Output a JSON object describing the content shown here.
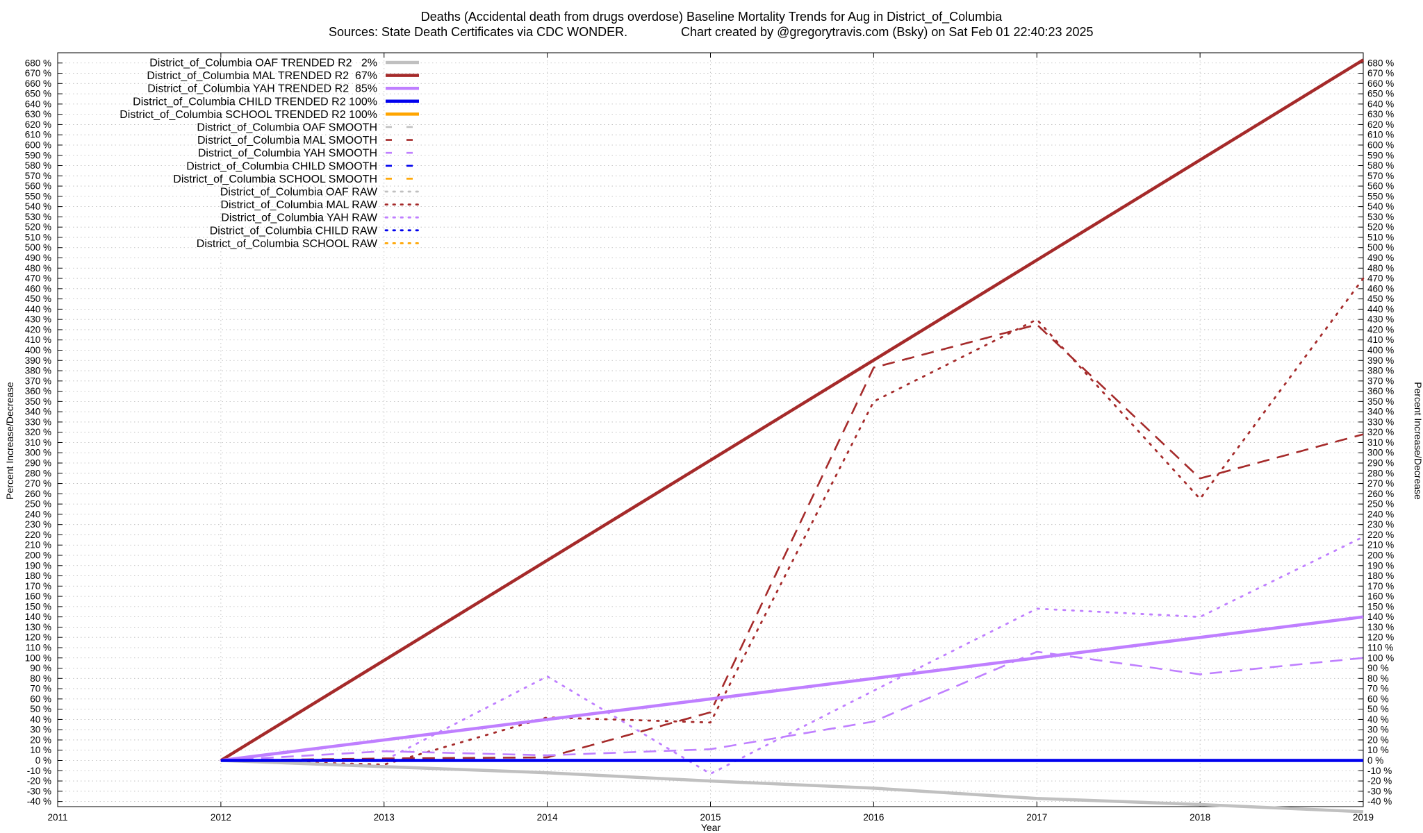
{
  "chart_data": {
    "type": "line",
    "title": "Deaths (Accidental death from drugs overdose)  Baseline Mortality Trends for Aug in District_of_Columbia",
    "subtitle_left": "Sources: State Death Certificates via CDC WONDER.",
    "subtitle_right": "Chart created by @gregorytravis.com (Bsky) on Sat Feb 01 22:40:23 2025",
    "xlabel": "Year",
    "ylabel_left": "Percent Increase/Decrease",
    "ylabel_right": "Percent Increase/Decrease",
    "xlim": [
      2011,
      2019
    ],
    "ylim": [
      -45,
      690
    ],
    "x_ticks": [
      "2011",
      "2012",
      "2013",
      "2014",
      "2015",
      "2016",
      "2017",
      "2018",
      "2019"
    ],
    "y_tick_start": -40,
    "y_tick_end": 680,
    "y_tick_step": 10,
    "y_tick_suffix": " %",
    "grid": true,
    "legend_position": "top-left",
    "colors": {
      "oaf": "#c0c0c0",
      "mal": "#a52a2a",
      "yah": "#bf7fff",
      "child": "#0000ee",
      "school": "#ffa500"
    },
    "series": [
      {
        "name": "District_of_Columbia OAF TRENDED R2   2%",
        "key": "oaf",
        "style": "trended",
        "x": [
          2012,
          2013,
          2014,
          2015,
          2016,
          2017,
          2018,
          2019
        ],
        "values": [
          0,
          -6,
          -12,
          -20,
          -27,
          -37,
          -43,
          -50
        ]
      },
      {
        "name": "District_of_Columbia MAL TRENDED R2  67%",
        "key": "mal",
        "style": "trended",
        "x": [
          2012,
          2019
        ],
        "values": [
          0,
          683
        ]
      },
      {
        "name": "District_of_Columbia YAH TRENDED R2  85%",
        "key": "yah",
        "style": "trended",
        "x": [
          2012,
          2019
        ],
        "values": [
          0,
          140
        ]
      },
      {
        "name": "District_of_Columbia CHILD TRENDED R2 100%",
        "key": "child",
        "style": "trended",
        "x": [
          2012,
          2019
        ],
        "values": [
          0,
          0
        ]
      },
      {
        "name": "District_of_Columbia SCHOOL TRENDED R2 100%",
        "key": "school",
        "style": "trended",
        "x": [],
        "values": []
      },
      {
        "name": "District_of_Columbia OAF SMOOTH",
        "key": "oaf",
        "style": "smooth",
        "x": [],
        "values": []
      },
      {
        "name": "District_of_Columbia MAL SMOOTH",
        "key": "mal",
        "style": "smooth",
        "x": [
          2012,
          2013,
          2014,
          2015,
          2016,
          2017,
          2018,
          2019
        ],
        "values": [
          0,
          2,
          3,
          47,
          383,
          425,
          275,
          318
        ]
      },
      {
        "name": "District_of_Columbia YAH SMOOTH",
        "key": "yah",
        "style": "smooth",
        "x": [
          2012,
          2013,
          2014,
          2015,
          2016,
          2017,
          2018,
          2019
        ],
        "values": [
          0,
          9,
          5,
          11,
          38,
          106,
          84,
          100
        ]
      },
      {
        "name": "District_of_Columbia CHILD SMOOTH",
        "key": "child",
        "style": "smooth",
        "x": [],
        "values": []
      },
      {
        "name": "District_of_Columbia SCHOOL SMOOTH",
        "key": "school",
        "style": "smooth",
        "x": [],
        "values": []
      },
      {
        "name": "District_of_Columbia OAF RAW",
        "key": "oaf",
        "style": "raw",
        "x": [],
        "values": []
      },
      {
        "name": "District_of_Columbia MAL RAW",
        "key": "mal",
        "style": "raw",
        "x": [
          2012,
          2013,
          2014,
          2015,
          2016,
          2017,
          2018,
          2019
        ],
        "values": [
          0,
          -4,
          42,
          37,
          350,
          430,
          255,
          470
        ]
      },
      {
        "name": "District_of_Columbia YAH RAW",
        "key": "yah",
        "style": "raw",
        "x": [
          2012,
          2013,
          2014,
          2015,
          2016,
          2017,
          2018,
          2019
        ],
        "values": [
          0,
          0,
          82,
          -13,
          68,
          148,
          140,
          218
        ]
      },
      {
        "name": "District_of_Columbia CHILD RAW",
        "key": "child",
        "style": "raw",
        "x": [],
        "values": []
      },
      {
        "name": "District_of_Columbia SCHOOL RAW",
        "key": "school",
        "style": "raw",
        "x": [],
        "values": []
      }
    ]
  }
}
